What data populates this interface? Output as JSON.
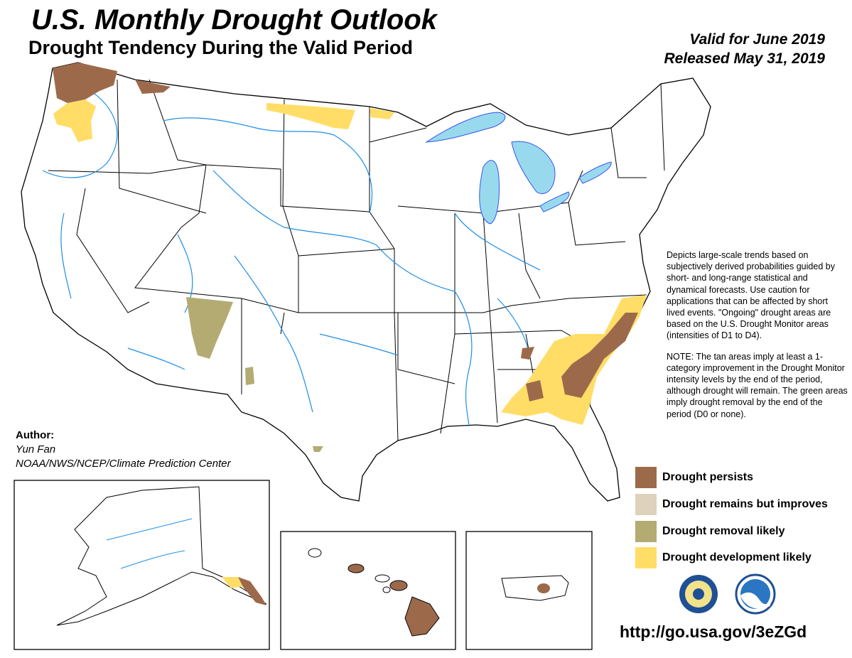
{
  "header": {
    "title": "U.S. Monthly Drought Outlook",
    "subtitle": "Drought Tendency During the Valid Period",
    "valid": "Valid for June 2019",
    "released": "Released May 31, 2019"
  },
  "description": {
    "paragraph1": "Depicts large-scale trends based on subjectively derived probabilities guided by short- and long-range statistical and dynamical forecasts. Use caution for applications that can be affected by short lived events. \"Ongoing\" drought areas are based on the U.S. Drought Monitor areas (intensities of D1 to D4).",
    "paragraph2": "NOTE: The tan areas imply at least a 1-category improvement in the Drought Monitor intensity levels by the end of the period, although drought will remain. The green areas imply drought removal by the end of the period (D0 or none)."
  },
  "legend": {
    "items": [
      {
        "label": "Drought persists",
        "color": "#9c6a4b"
      },
      {
        "label": "Drought remains but improves",
        "color": "#dfd2bd"
      },
      {
        "label": "Drought removal likely",
        "color": "#b3ab72"
      },
      {
        "label": "Drought development likely",
        "color": "#ffdd66"
      }
    ]
  },
  "author": {
    "heading": "Author:",
    "name": "Yun Fan",
    "organization": "NOAA/NWS/NCEP/Climate Prediction Center"
  },
  "footer": {
    "url": "http://go.usa.gov/3eZGd"
  },
  "colors": {
    "water": "#99d9ee",
    "rivers": "#1e8ee6",
    "lakes": "#3355ee",
    "boundary": "#000000"
  },
  "icons": [
    "nws-logo-icon",
    "noaa-logo-icon"
  ]
}
